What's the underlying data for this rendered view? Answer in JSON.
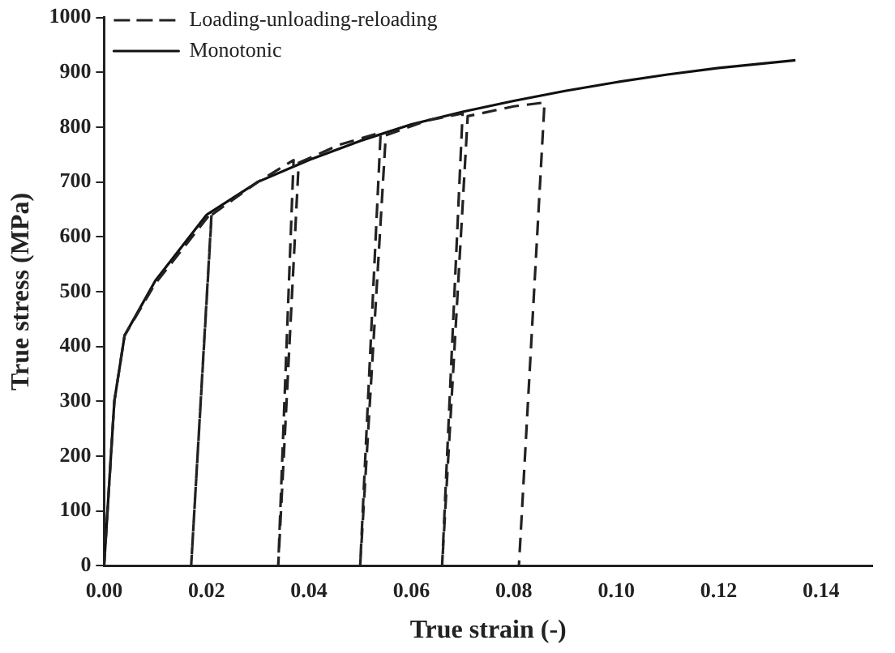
{
  "chart_data": {
    "type": "line",
    "xlabel": "True strain (-)",
    "ylabel": "True stress (MPa)",
    "xlim": [
      0,
      0.15
    ],
    "xticks": [
      {
        "value": 0,
        "label": "0.00"
      },
      {
        "value": 0.02,
        "label": "0.02"
      },
      {
        "value": 0.04,
        "label": "0.04"
      },
      {
        "value": 0.06,
        "label": "0.06"
      },
      {
        "value": 0.08,
        "label": "0.08"
      },
      {
        "value": 0.1,
        "label": "0.10"
      },
      {
        "value": 0.12,
        "label": "0.12"
      },
      {
        "value": 0.14,
        "label": "0.14"
      }
    ],
    "ylim": [
      0,
      1000
    ],
    "yticks": [
      0,
      100,
      200,
      300,
      400,
      500,
      600,
      700,
      800,
      900,
      1000
    ],
    "grid": false,
    "legend": "top left",
    "marker": "none",
    "series": [
      {
        "name": "Loading-unloading-reloading",
        "color": "#222222",
        "line_style": "dashed",
        "x": [
          0,
          0.002,
          0.004,
          0.01,
          0.021,
          0.017,
          0.021,
          0.03,
          0.037,
          0.034,
          0.038,
          0.046,
          0.054,
          0.05,
          0.055,
          0.063,
          0.07,
          0.066,
          0.071,
          0.08,
          0.086,
          0.081
        ],
        "values": [
          0,
          300,
          420,
          515,
          645,
          0,
          640,
          700,
          740,
          0,
          735,
          768,
          790,
          0,
          785,
          812,
          825,
          0,
          820,
          838,
          845,
          0
        ]
      },
      {
        "name": "Monotonic",
        "color": "#111111",
        "line_style": "solid",
        "x": [
          0,
          0.002,
          0.004,
          0.01,
          0.02,
          0.03,
          0.04,
          0.05,
          0.06,
          0.07,
          0.08,
          0.09,
          0.1,
          0.11,
          0.12,
          0.135
        ],
        "values": [
          0,
          300,
          420,
          520,
          640,
          700,
          740,
          775,
          805,
          828,
          848,
          866,
          882,
          896,
          908,
          922
        ]
      }
    ]
  }
}
